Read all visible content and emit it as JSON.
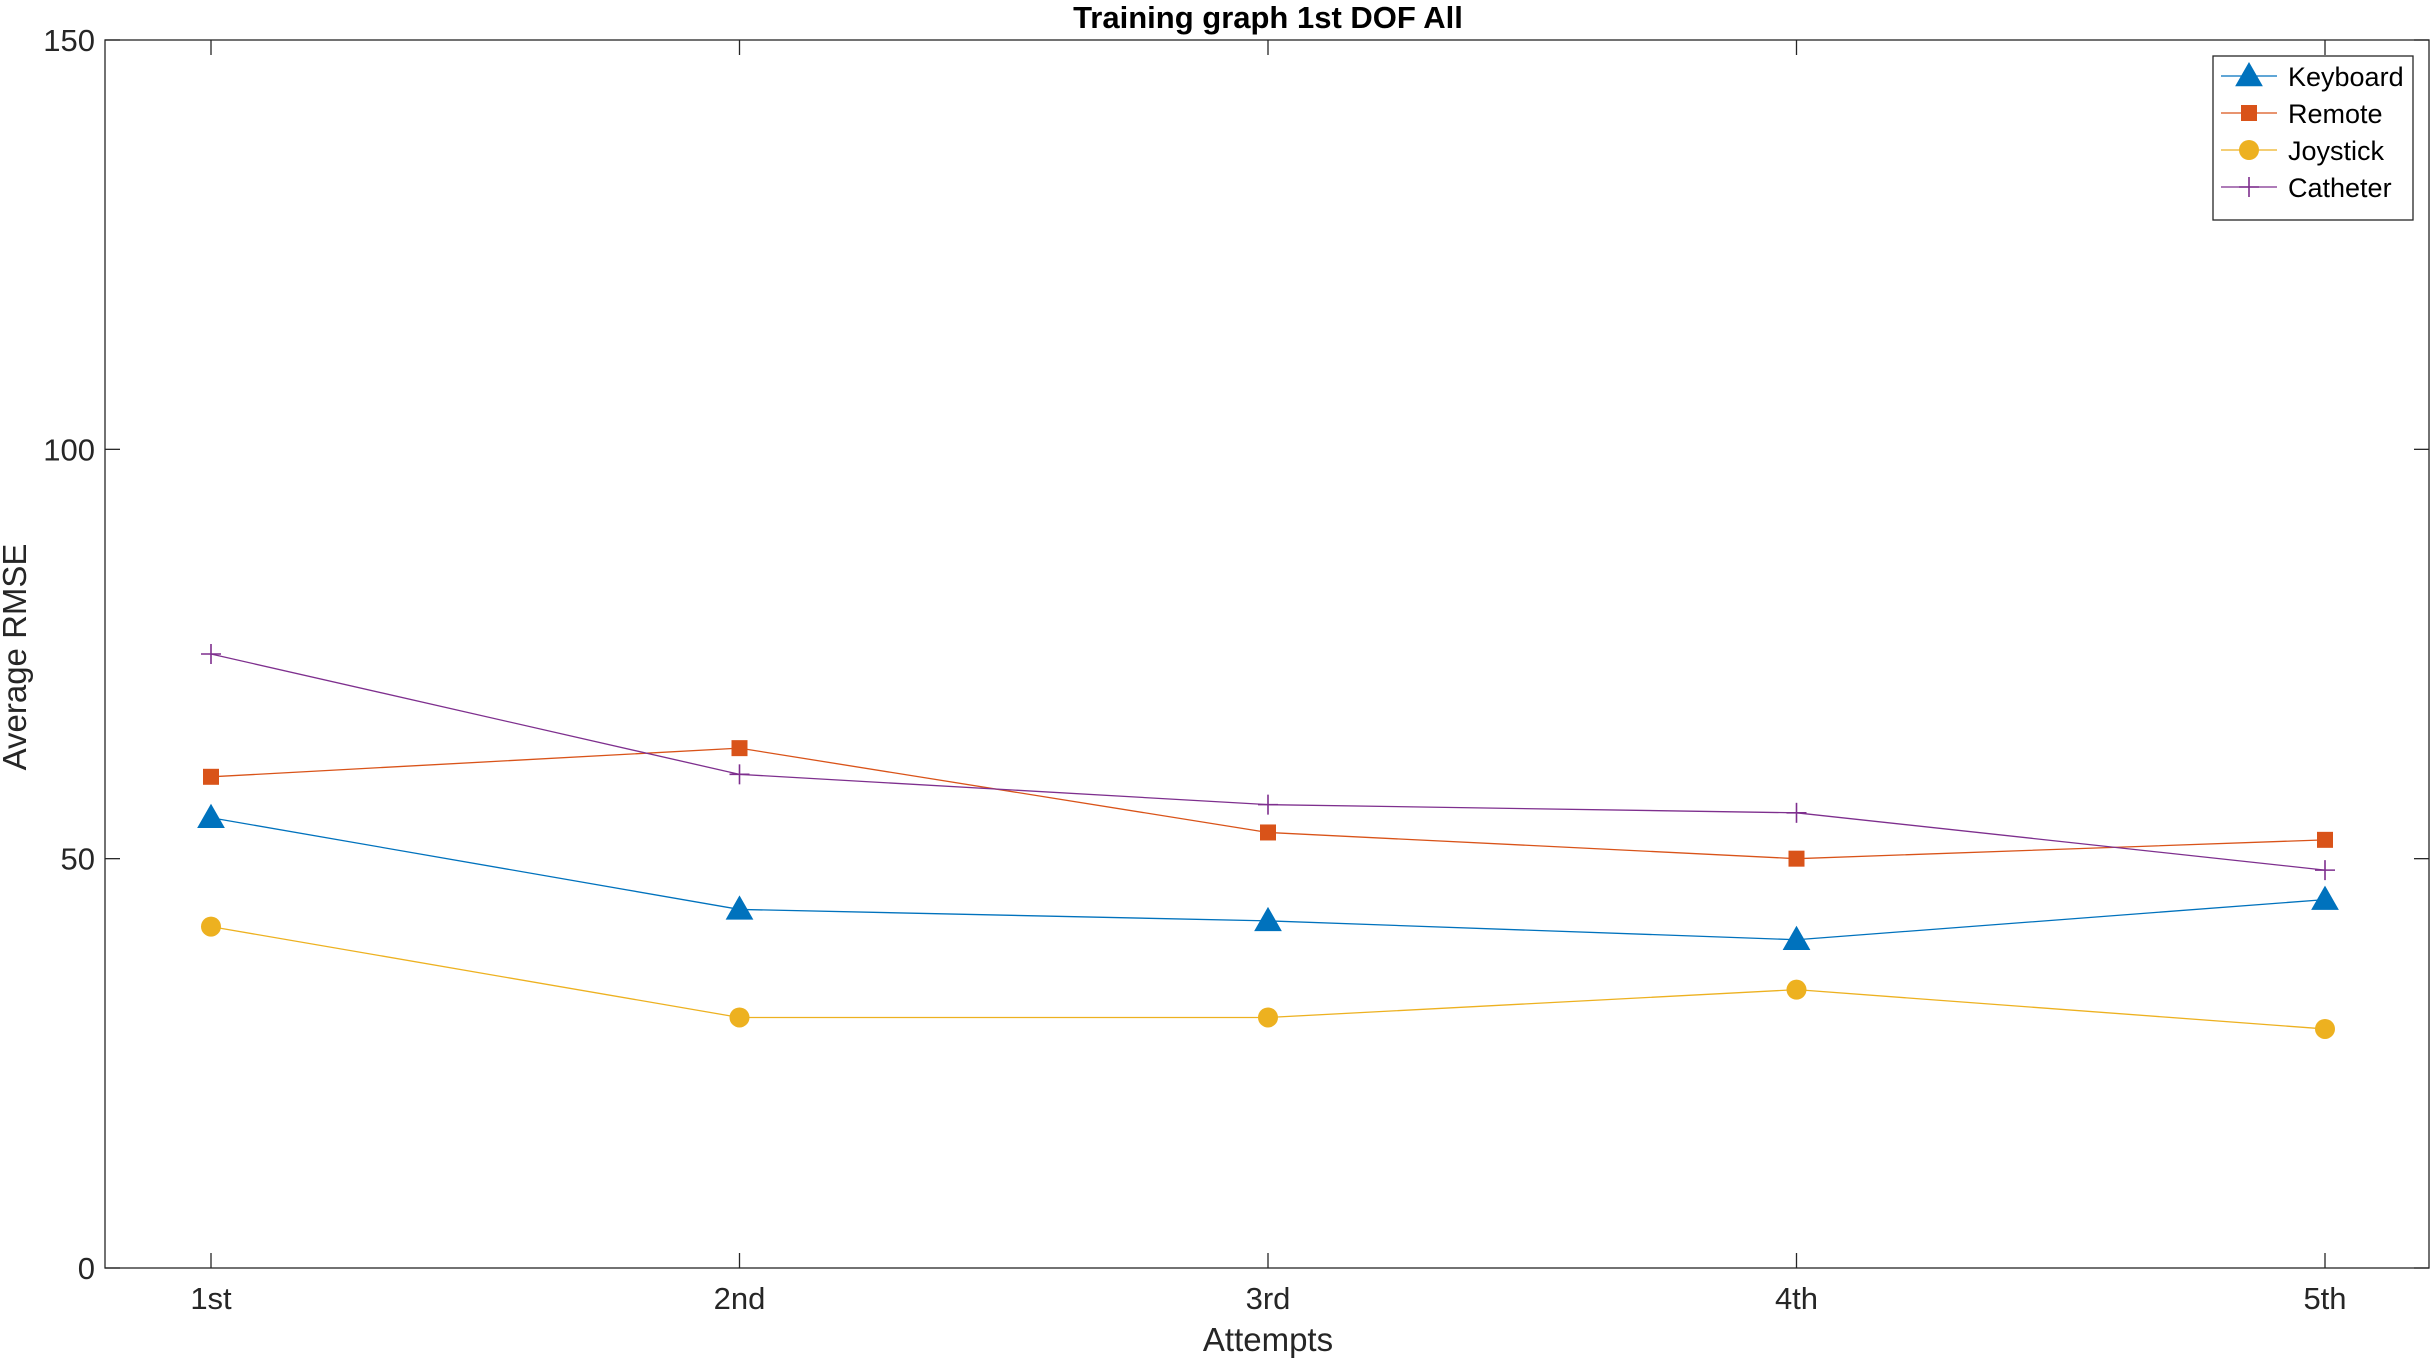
{
  "chart_data": {
    "type": "line",
    "title": "Training graph 1st DOF All",
    "xlabel": "Attempts",
    "ylabel": "Average RMSE",
    "categories": [
      "1st",
      "2nd",
      "3rd",
      "4th",
      "5th"
    ],
    "ylim": [
      0,
      150
    ],
    "yticks": [
      0,
      50,
      100,
      150
    ],
    "grid": false,
    "legend_position": "top-right",
    "series": [
      {
        "name": "Keyboard",
        "color": "#0072BD",
        "marker": "triangle",
        "values": [
          55.0,
          43.8,
          42.4,
          40.1,
          45.0
        ]
      },
      {
        "name": "Remote",
        "color": "#D95319",
        "marker": "square",
        "values": [
          60.0,
          63.5,
          53.2,
          50.0,
          52.3
        ]
      },
      {
        "name": "Joystick",
        "color": "#EDB120",
        "marker": "circle",
        "values": [
          41.7,
          30.6,
          30.6,
          34.0,
          29.2
        ]
      },
      {
        "name": "Catheter",
        "color": "#7E2F8E",
        "marker": "plus",
        "values": [
          75.0,
          60.3,
          56.6,
          55.6,
          48.6
        ]
      }
    ]
  }
}
